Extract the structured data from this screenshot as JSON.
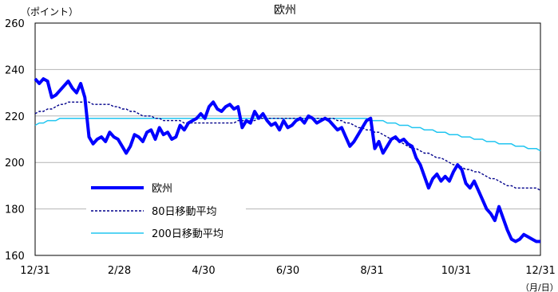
{
  "chart_data": {
    "type": "line",
    "title": "欧州",
    "ylabel": "（ポイント）",
    "xlabel": "（月/日）",
    "ylim": [
      160,
      260
    ],
    "yticks": [
      160,
      180,
      200,
      220,
      240,
      260
    ],
    "xticks": [
      "12/31",
      "2/28",
      "4/30",
      "6/30",
      "8/31",
      "10/31",
      "12/31"
    ],
    "grid": "horizontal",
    "legend_position": "lower-left",
    "x": [
      0,
      3,
      6,
      9,
      12,
      15,
      18,
      21,
      24,
      27,
      30,
      33,
      36,
      39,
      42,
      45,
      48,
      51,
      54,
      57,
      60,
      63,
      66,
      69,
      72,
      75,
      78,
      81,
      84,
      87,
      90,
      93,
      96,
      99,
      102,
      105,
      108,
      111,
      114,
      117,
      120,
      123,
      126,
      129,
      132,
      135,
      138,
      141,
      144,
      147,
      150,
      153,
      156,
      159,
      162,
      165,
      168,
      171,
      174,
      177,
      180,
      183,
      186,
      189,
      192,
      195,
      198,
      201,
      204,
      207,
      210,
      213,
      216,
      219,
      222,
      225,
      228,
      231,
      234,
      237,
      240,
      243,
      246,
      249,
      252,
      255,
      258,
      261,
      264,
      267,
      270,
      273,
      276,
      279,
      282,
      285,
      288,
      291,
      294,
      297,
      300,
      303,
      306,
      309,
      312,
      315,
      318,
      321,
      324,
      327,
      330,
      333,
      336,
      339,
      342,
      345,
      348,
      351,
      354,
      357,
      360,
      363,
      366
    ],
    "series": [
      {
        "name": "欧州",
        "color": "#0000ff",
        "values": [
          236,
          234,
          236,
          235,
          228,
          229,
          231,
          233,
          235,
          232,
          230,
          234,
          228,
          211,
          208,
          210,
          211,
          209,
          213,
          211,
          210,
          207,
          204,
          207,
          212,
          211,
          209,
          213,
          214,
          210,
          215,
          212,
          213,
          210,
          211,
          216,
          214,
          217,
          218,
          219,
          221,
          219,
          224,
          226,
          223,
          222,
          224,
          225,
          223,
          224,
          215,
          218,
          217,
          222,
          219,
          221,
          218,
          216,
          217,
          214,
          218,
          215,
          216,
          218,
          219,
          217,
          220,
          219,
          217,
          218,
          219,
          218,
          216,
          214,
          215,
          211,
          207,
          209,
          212,
          215,
          218,
          219,
          206,
          209,
          204,
          207,
          210,
          211,
          209,
          210,
          208,
          207,
          202,
          199,
          194,
          189,
          193,
          195,
          192,
          194,
          192,
          196,
          199,
          197,
          191,
          189,
          192,
          188,
          184,
          180,
          178,
          175,
          181,
          176,
          171,
          167,
          166,
          167,
          169,
          168,
          167,
          166,
          166
        ]
      },
      {
        "name": "80日移動平均",
        "color": "#00008b",
        "values": [
          221,
          222,
          222,
          223,
          223,
          224,
          225,
          225,
          226,
          226,
          226,
          226,
          226,
          226,
          225,
          225,
          225,
          225,
          225,
          224,
          224,
          223,
          223,
          222,
          222,
          221,
          220,
          220,
          220,
          219,
          219,
          218,
          218,
          218,
          218,
          218,
          217,
          217,
          217,
          217,
          217,
          217,
          217,
          217,
          217,
          217,
          217,
          217,
          217,
          218,
          218,
          218,
          218,
          218,
          219,
          219,
          219,
          219,
          219,
          219,
          219,
          219,
          219,
          219,
          219,
          219,
          219,
          219,
          219,
          219,
          219,
          219,
          219,
          218,
          218,
          217,
          217,
          216,
          215,
          215,
          214,
          214,
          213,
          213,
          212,
          211,
          210,
          210,
          209,
          208,
          207,
          206,
          206,
          205,
          204,
          204,
          203,
          202,
          202,
          201,
          200,
          199,
          199,
          198,
          197,
          197,
          196,
          196,
          195,
          194,
          193,
          193,
          192,
          191,
          190,
          190,
          189,
          189,
          189,
          189,
          189,
          189,
          188
        ]
      },
      {
        "name": "200日移動平均",
        "color": "#20c5f0",
        "values": [
          216,
          217,
          217,
          218,
          218,
          218,
          219,
          219,
          219,
          219,
          219,
          219,
          219,
          219,
          219,
          219,
          219,
          219,
          219,
          219,
          219,
          219,
          219,
          219,
          219,
          219,
          219,
          219,
          219,
          219,
          219,
          219,
          219,
          219,
          219,
          219,
          219,
          219,
          219,
          219,
          219,
          219,
          219,
          219,
          219,
          219,
          219,
          219,
          219,
          219,
          219,
          219,
          219,
          219,
          219,
          219,
          219,
          219,
          219,
          219,
          219,
          219,
          219,
          219,
          219,
          219,
          219,
          219,
          219,
          219,
          219,
          219,
          219,
          219,
          219,
          219,
          219,
          219,
          219,
          219,
          219,
          218,
          218,
          218,
          218,
          217,
          217,
          217,
          216,
          216,
          216,
          215,
          215,
          215,
          214,
          214,
          214,
          213,
          213,
          213,
          212,
          212,
          212,
          211,
          211,
          211,
          210,
          210,
          210,
          209,
          209,
          209,
          208,
          208,
          208,
          208,
          207,
          207,
          207,
          206,
          206,
          206,
          205
        ]
      }
    ]
  }
}
